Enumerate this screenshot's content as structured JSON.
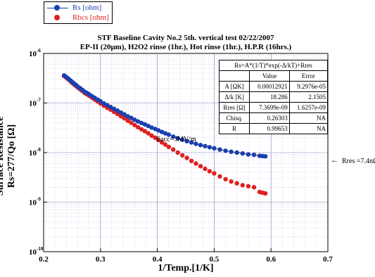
{
  "legend": [
    {
      "label": "Rs [ohm]",
      "color": "#1a3fb0",
      "line": true
    },
    {
      "label": "Rbcs [ohm]",
      "color": "#e02020",
      "line": false
    }
  ],
  "title_line1": "STF Baseline Cavity No.2 5th. vertical test 02/22/2007",
  "title_line2": "EP-II (20μm), H2O2 rinse (1hr.), Hot rinse (1hr.), H.P.R (16hrs.)",
  "fit_table": {
    "formula": "Rs=A*(1/T)*exp(-Δ/kT)+Rres",
    "header": [
      "",
      "Value",
      "Error"
    ],
    "rows": [
      [
        "A [ΩK]",
        "0.00012921",
        "9.2976e-05"
      ],
      [
        "Δ/k [K]",
        "18.286",
        "2.1505"
      ],
      [
        "Rres [Ω]",
        "7.3699e-09",
        "1.6257e-09"
      ],
      [
        "Chisq.",
        "0.26303",
        "NA"
      ],
      [
        "R",
        "0.99653",
        "NA"
      ]
    ]
  },
  "annotations": {
    "eacc": "Eacc=3MV/m",
    "rres": "Rres =7.4nΩ",
    "arrow": "←"
  },
  "chart_data": {
    "type": "scatter",
    "xlabel": "1/Temp.[1/K]",
    "ylabel_line1": "Surface Resistance",
    "ylabel_line2": "Rs=277/Qo [Ω]",
    "xlim": [
      0.2,
      0.7
    ],
    "ylim_exponent": [
      -10,
      -6
    ],
    "yscale": "log",
    "x_ticks": [
      "0.2",
      "0.3",
      "0.4",
      "0.5",
      "0.6",
      "0.7"
    ],
    "y_tick_base": "10",
    "y_tick_exponents": [
      "-10",
      "-9",
      "-8",
      "-7",
      "-6"
    ],
    "grid": true,
    "series": [
      {
        "name": "Rs [ohm]",
        "color": "#1a3fb0",
        "x": [
          0.236,
          0.239,
          0.242,
          0.245,
          0.248,
          0.251,
          0.254,
          0.257,
          0.26,
          0.264,
          0.268,
          0.272,
          0.276,
          0.28,
          0.285,
          0.29,
          0.295,
          0.3,
          0.306,
          0.312,
          0.318,
          0.324,
          0.33,
          0.336,
          0.342,
          0.348,
          0.354,
          0.36,
          0.366,
          0.372,
          0.378,
          0.384,
          0.39,
          0.396,
          0.402,
          0.408,
          0.414,
          0.42,
          0.428,
          0.436,
          0.444,
          0.452,
          0.46,
          0.468,
          0.476,
          0.484,
          0.492,
          0.5,
          0.51,
          0.52,
          0.53,
          0.54,
          0.55,
          0.56,
          0.57,
          0.58,
          0.585,
          0.59
        ],
        "y": [
          3.6e-07,
          3.4e-07,
          3.2e-07,
          3e-07,
          2.8e-07,
          2.6e-07,
          2.45e-07,
          2.3e-07,
          2.15e-07,
          2e-07,
          1.85e-07,
          1.7e-07,
          1.6e-07,
          1.5e-07,
          1.38e-07,
          1.27e-07,
          1.17e-07,
          1.08e-07,
          9.8e-08,
          9e-08,
          8.3e-08,
          7.6e-08,
          7e-08,
          6.4e-08,
          5.9e-08,
          5.4e-08,
          5e-08,
          4.6e-08,
          4.25e-08,
          3.95e-08,
          3.7e-08,
          3.45e-08,
          3.2e-08,
          3e-08,
          2.8e-08,
          2.6e-08,
          2.45e-08,
          2.3e-08,
          2.1e-08,
          1.95e-08,
          1.82e-08,
          1.7e-08,
          1.6e-08,
          1.5e-08,
          1.42e-08,
          1.35e-08,
          1.28e-08,
          1.22e-08,
          1.15e-08,
          1.09e-08,
          1.04e-08,
          1e-08,
          9.6e-09,
          9.2e-09,
          9e-09,
          8.6e-09,
          8.5e-09,
          8.4e-09
        ]
      },
      {
        "name": "Rbcs [ohm]",
        "color": "#e02020",
        "x": [
          0.236,
          0.239,
          0.242,
          0.245,
          0.248,
          0.251,
          0.254,
          0.257,
          0.26,
          0.264,
          0.268,
          0.272,
          0.276,
          0.28,
          0.285,
          0.29,
          0.295,
          0.3,
          0.306,
          0.312,
          0.318,
          0.324,
          0.33,
          0.336,
          0.342,
          0.348,
          0.354,
          0.36,
          0.366,
          0.372,
          0.378,
          0.384,
          0.39,
          0.396,
          0.402,
          0.408,
          0.414,
          0.42,
          0.428,
          0.436,
          0.444,
          0.452,
          0.46,
          0.468,
          0.476,
          0.484,
          0.492,
          0.5,
          0.51,
          0.52,
          0.53,
          0.54,
          0.55,
          0.56,
          0.57,
          0.58,
          0.585,
          0.59
        ],
        "y": [
          3.5e-07,
          3.3e-07,
          3.1e-07,
          2.9e-07,
          2.7e-07,
          2.5e-07,
          2.35e-07,
          2.2e-07,
          2.05e-07,
          1.9e-07,
          1.75e-07,
          1.6e-07,
          1.5e-07,
          1.4e-07,
          1.28e-07,
          1.17e-07,
          1.07e-07,
          9.8e-08,
          8.8e-08,
          8e-08,
          7.3e-08,
          6.6e-08,
          6e-08,
          5.4e-08,
          4.9e-08,
          4.4e-08,
          4e-08,
          3.6e-08,
          3.25e-08,
          2.95e-08,
          2.7e-08,
          2.45e-08,
          2.2e-08,
          2e-08,
          1.8e-08,
          1.6e-08,
          1.45e-08,
          1.3e-08,
          1.15e-08,
          1e-08,
          8.8e-09,
          7.8e-09,
          6.8e-09,
          6e-09,
          5.3e-09,
          4.7e-09,
          4.2e-09,
          3.8e-09,
          3.3e-09,
          2.9e-09,
          2.6e-09,
          2.4e-09,
          2.2e-09,
          2.1e-09,
          2e-09,
          1.6e-09,
          1.55e-09,
          1.5e-09
        ]
      }
    ]
  }
}
